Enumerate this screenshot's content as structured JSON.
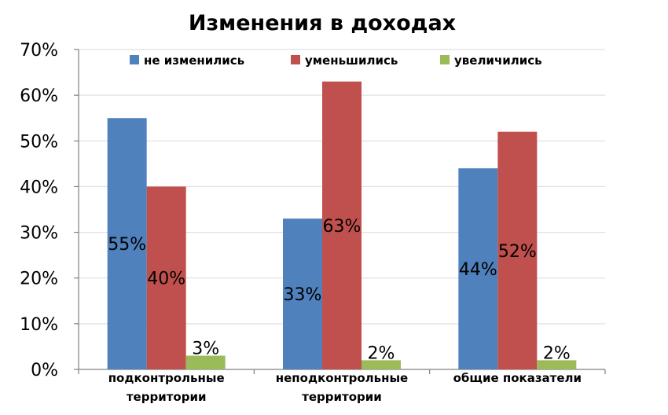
{
  "chart_data": {
    "type": "bar",
    "title": "Изменения в доходах",
    "categories": [
      [
        "подконтрольные",
        "территории"
      ],
      [
        "неподконтрольные",
        "территории"
      ],
      [
        "общие показатели"
      ]
    ],
    "series": [
      {
        "name": "не изменились",
        "color": "#4f81bd",
        "values": [
          55,
          33,
          44
        ],
        "labels": [
          "55%",
          "33%",
          "44%"
        ]
      },
      {
        "name": "уменьшились",
        "color": "#c0504d",
        "values": [
          40,
          63,
          52
        ],
        "labels": [
          "40%",
          "63%",
          "52%"
        ]
      },
      {
        "name": "увеличились",
        "color": "#9bbb59",
        "values": [
          3,
          2,
          2
        ],
        "labels": [
          "3%",
          "2%",
          "2%"
        ]
      }
    ],
    "ylim": [
      0,
      70
    ],
    "yticks": [
      "0%",
      "10%",
      "20%",
      "30%",
      "40%",
      "50%",
      "60%",
      "70%"
    ],
    "grid": true,
    "legend_position": "top"
  }
}
